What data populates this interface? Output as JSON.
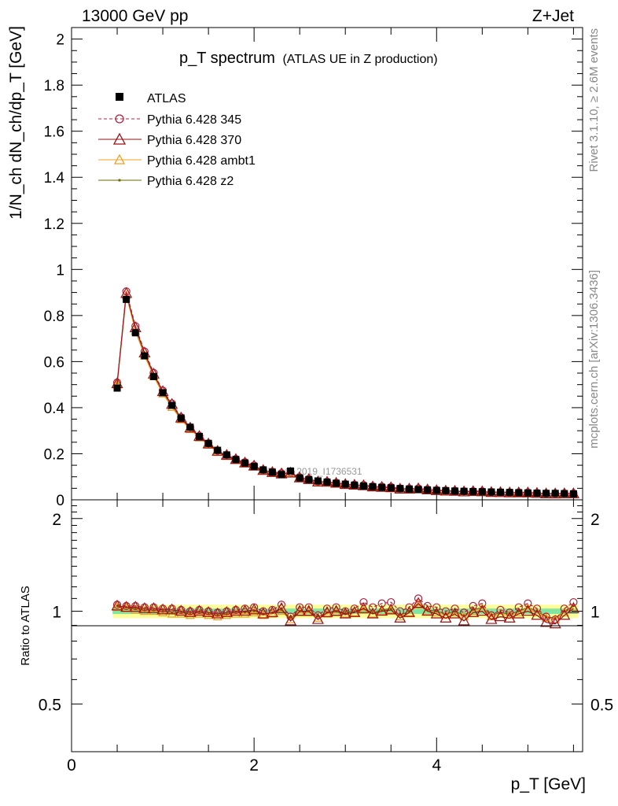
{
  "header": {
    "energy_label": "13000 GeV pp",
    "process_label": "Z+Jet"
  },
  "side_labels": {
    "rivet": "Rivet 3.1.10, ≥ 2.6M events",
    "source": "mcplots.cern.ch [arXiv:1306.3436]"
  },
  "watermark": "ATLAS_2019_I1736531",
  "colors": {
    "atlas": "#000000",
    "p345": "#b0203c",
    "p370": "#9a0f10",
    "ambt1": "#f0a020",
    "z2": "#6b6b00",
    "band_inner": "#80e6a0",
    "band_outer": "#ffff99"
  },
  "chart_data": [
    {
      "type": "line",
      "title": "p_T spectrum",
      "subtitle": "(ATLAS UE in Z production)",
      "xlabel": "p_T [GeV]",
      "ylabel": "1/N_ch dN_ch/dp_T [GeV]",
      "xlim": [
        0,
        5.6
      ],
      "ylim": [
        0,
        2.05
      ],
      "y_ticks": [
        "0",
        "0.2",
        "0.4",
        "0.6",
        "0.8",
        "1",
        "1.2",
        "1.4",
        "1.6",
        "1.8",
        "2"
      ],
      "legend_position": "top-left",
      "legend": [
        "ATLAS",
        "Pythia 6.428 345",
        "Pythia 6.428 370",
        "Pythia 6.428 ambt1",
        "Pythia 6.428 z2"
      ],
      "x": [
        0.5,
        0.6,
        0.7,
        0.8,
        0.9,
        1.0,
        1.1,
        1.2,
        1.3,
        1.4,
        1.5,
        1.6,
        1.7,
        1.8,
        1.9,
        2.0,
        2.1,
        2.2,
        2.3,
        2.4,
        2.5,
        2.6,
        2.7,
        2.8,
        2.9,
        3.0,
        3.1,
        3.2,
        3.3,
        3.4,
        3.5,
        3.6,
        3.7,
        3.8,
        3.9,
        4.0,
        4.1,
        4.2,
        4.3,
        4.4,
        4.5,
        4.6,
        4.7,
        4.8,
        4.9,
        5.0,
        5.1,
        5.2,
        5.3,
        5.4,
        5.5
      ],
      "atlas": [
        0.485,
        0.87,
        0.725,
        0.625,
        0.535,
        0.465,
        0.41,
        0.355,
        0.315,
        0.275,
        0.245,
        0.215,
        0.195,
        0.175,
        0.16,
        0.145,
        0.13,
        0.12,
        0.11,
        0.125,
        0.095,
        0.088,
        0.082,
        0.077,
        0.072,
        0.068,
        0.064,
        0.06,
        0.057,
        0.054,
        0.052,
        0.049,
        0.047,
        0.045,
        0.043,
        0.041,
        0.04,
        0.038,
        0.037,
        0.036,
        0.035,
        0.034,
        0.033,
        0.032,
        0.031,
        0.03,
        0.029,
        0.028,
        0.028,
        0.027,
        0.026
      ],
      "series_ratio": {
        "p345": [
          1.05,
          1.04,
          1.04,
          1.03,
          1.03,
          1.02,
          1.02,
          1.01,
          1.0,
          1.01,
          1.0,
          0.99,
          1.0,
          1.01,
          1.02,
          1.03,
          1.0,
          1.01,
          1.05,
          0.96,
          1.03,
          1.03,
          0.97,
          1.02,
          1.03,
          1.0,
          1.02,
          1.07,
          1.03,
          1.06,
          1.07,
          1.0,
          1.03,
          1.1,
          1.04,
          1.03,
          1.0,
          1.02,
          0.99,
          1.04,
          1.06,
          0.97,
          1.01,
          0.99,
          1.03,
          1.06,
          1.02,
          0.96,
          0.94,
          1.02,
          1.07
        ],
        "p370": [
          1.04,
          1.03,
          1.03,
          1.02,
          1.02,
          1.01,
          1.01,
          1.0,
          0.99,
          1.0,
          0.99,
          0.98,
          0.99,
          1.0,
          1.0,
          1.01,
          0.98,
          0.99,
          1.02,
          0.93,
          1.0,
          1.0,
          0.94,
          0.99,
          1.0,
          0.98,
          0.99,
          1.02,
          0.98,
          1.0,
          1.01,
          0.95,
          0.99,
          1.06,
          1.0,
          0.98,
          0.95,
          0.98,
          0.93,
          0.99,
          1.0,
          0.94,
          0.96,
          0.95,
          0.98,
          1.0,
          0.97,
          0.92,
          0.91,
          0.97,
          1.02
        ],
        "ambt1": [
          1.03,
          1.02,
          1.01,
          1.0,
          1.0,
          0.99,
          0.98,
          0.98,
          0.97,
          0.98,
          0.97,
          0.96,
          0.97,
          0.98,
          0.98,
          0.99,
          0.97,
          0.98,
          1.0,
          0.94,
          0.99,
          0.99,
          0.95,
          0.98,
          0.99,
          0.98,
          0.99,
          1.01,
          0.98,
          1.0,
          1.01,
          0.96,
          0.99,
          1.05,
          1.0,
          0.99,
          0.97,
          0.99,
          0.96,
          1.0,
          1.02,
          0.96,
          0.98,
          0.97,
          0.99,
          1.02,
          0.99,
          0.95,
          0.94,
          0.99,
          1.03
        ],
        "z2": [
          1.04,
          1.03,
          1.02,
          1.01,
          1.01,
          1.0,
          0.99,
          0.99,
          0.98,
          0.99,
          0.98,
          0.97,
          0.98,
          0.99,
          0.99,
          1.0,
          0.98,
          0.99,
          1.01,
          0.95,
          1.0,
          1.0,
          0.96,
          0.99,
          1.0,
          0.99,
          1.0,
          1.02,
          0.99,
          1.01,
          1.02,
          0.97,
          1.0,
          1.05,
          1.01,
          1.0,
          0.98,
          1.0,
          0.97,
          1.01,
          1.03,
          0.97,
          0.99,
          0.98,
          1.0,
          1.03,
          1.0,
          0.96,
          0.95,
          1.0,
          1.04
        ]
      }
    },
    {
      "type": "line",
      "xlabel": "p_T [GeV]",
      "ylabel": "Ratio to ATLAS",
      "xlim": [
        0,
        5.6
      ],
      "ylim": [
        0.35,
        2.3
      ],
      "x_ticks": [
        "0",
        "2",
        "4"
      ],
      "y_ticks": [
        "0.5",
        "1",
        "2"
      ],
      "band_inner_halfwidth": 0.02,
      "band_outer_halfwidth": 0.05
    }
  ]
}
